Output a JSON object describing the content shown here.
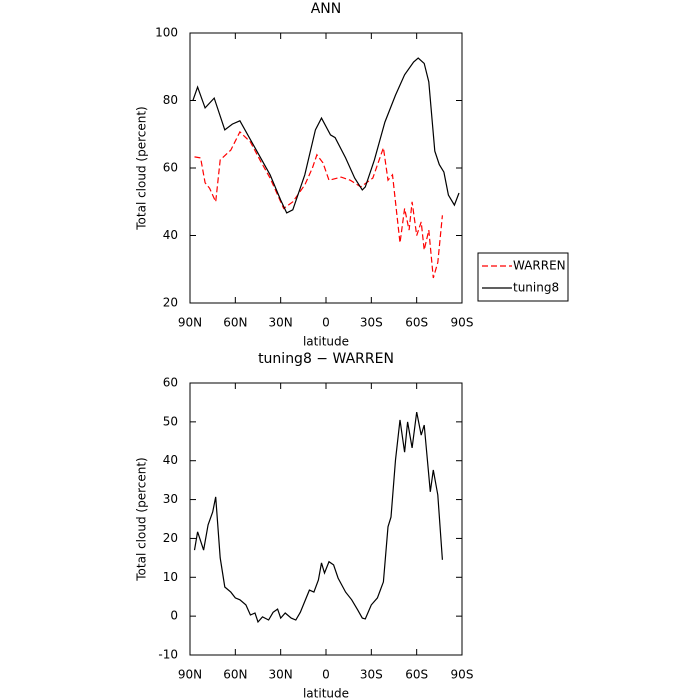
{
  "chart_data": [
    {
      "type": "line",
      "title": "ANN",
      "xlabel": "latitude",
      "ylabel": "Total cloud (percent)",
      "xlim": [
        90,
        -90
      ],
      "ylim": [
        20,
        100
      ],
      "xticks": [
        {
          "value": 90,
          "label": "90N"
        },
        {
          "value": 60,
          "label": "60N"
        },
        {
          "value": 30,
          "label": "30N"
        },
        0,
        {
          "value": -30,
          "label": "30S"
        },
        {
          "value": -60,
          "label": "60S"
        },
        {
          "value": -90,
          "label": "90S"
        }
      ],
      "yticks": [
        20,
        40,
        60,
        80,
        100
      ],
      "legend": "right",
      "series": [
        {
          "name": "WARREN",
          "color": "#ff0000",
          "dash": true,
          "x": [
            87,
            83,
            80,
            77,
            73,
            70,
            63,
            57,
            50,
            43,
            37,
            28,
            22,
            14,
            9,
            6,
            2,
            -2,
            -10,
            -16,
            -23,
            -31,
            -38,
            -41,
            -44,
            -49,
            -52,
            -55,
            -57,
            -60,
            -63,
            -65,
            -68,
            -71,
            -74,
            -77
          ],
          "values": [
            63.3,
            63,
            55.6,
            54,
            50,
            62.4,
            65.3,
            70.7,
            67.7,
            61.8,
            57,
            48,
            50,
            55,
            60,
            63.9,
            61.5,
            56.4,
            57.3,
            56.4,
            54.4,
            57,
            66,
            56.4,
            58,
            37.8,
            48,
            41.6,
            50,
            40,
            44,
            35.7,
            41.6,
            27.4,
            32,
            46
          ]
        },
        {
          "name": "tuning8",
          "color": "#000000",
          "dash": false,
          "x": [
            88,
            85,
            80,
            74,
            67,
            62,
            57,
            47,
            37,
            30,
            26,
            22,
            14,
            7,
            3,
            -3,
            -6,
            -13,
            -19,
            -24,
            -26,
            -32,
            -39,
            -46,
            -52,
            -58,
            -61,
            -65,
            -68,
            -72,
            -75,
            -78,
            -81,
            -85,
            -88
          ],
          "values": [
            80.1,
            84,
            77.8,
            80.7,
            71.3,
            73,
            74,
            66,
            58,
            50.5,
            46.7,
            47.6,
            58,
            71.3,
            74.8,
            69.8,
            69,
            63,
            57,
            53.5,
            54.4,
            62.4,
            73.6,
            81.6,
            87.6,
            91.4,
            92.6,
            91,
            85.5,
            65,
            61,
            58.8,
            52,
            49,
            52.6
          ]
        }
      ]
    },
    {
      "type": "line",
      "title": "tuning8 − WARREN",
      "xlabel": "latitude",
      "ylabel": "Total cloud (percent)",
      "xlim": [
        90,
        -90
      ],
      "ylim": [
        -10,
        60
      ],
      "xticks": [
        {
          "value": 90,
          "label": "90N"
        },
        {
          "value": 60,
          "label": "60N"
        },
        {
          "value": 30,
          "label": "30N"
        },
        0,
        {
          "value": -30,
          "label": "30S"
        },
        {
          "value": -60,
          "label": "60S"
        },
        {
          "value": -90,
          "label": "90S"
        }
      ],
      "yticks": [
        -10,
        0,
        10,
        20,
        30,
        40,
        50,
        60
      ],
      "series": [
        {
          "color": "#000000",
          "dash": false,
          "x": [
            87,
            85,
            81,
            78,
            75,
            73,
            70,
            67,
            63,
            60,
            57,
            53,
            50,
            47,
            45,
            42,
            38,
            35,
            32,
            30,
            27,
            23,
            20,
            17,
            11,
            8,
            5,
            3,
            1,
            -2,
            -5,
            -8,
            -13,
            -17,
            -21,
            -24,
            -26,
            -30,
            -34,
            -38,
            -41,
            -43,
            -46,
            -49,
            -52,
            -54,
            -57,
            -60,
            -63,
            -65,
            -69,
            -71,
            -74,
            -77
          ],
          "values": [
            17,
            21.7,
            17,
            23.5,
            26.8,
            30.7,
            15,
            7.5,
            6.2,
            4.7,
            4.2,
            2.9,
            0.3,
            0.8,
            -1.5,
            -0.2,
            -1,
            1,
            1.8,
            -0.5,
            0.8,
            -0.5,
            -1,
            1,
            6.7,
            6.2,
            9.3,
            13.7,
            11.1,
            14,
            13.2,
            9.8,
            6.2,
            4.2,
            1.6,
            -0.5,
            -0.7,
            2.9,
            4.7,
            8.8,
            23,
            25.5,
            40.2,
            50.5,
            42.2,
            50,
            43.3,
            52.5,
            46.6,
            49.2,
            32,
            37.6,
            31.2,
            14.5
          ]
        }
      ]
    }
  ]
}
